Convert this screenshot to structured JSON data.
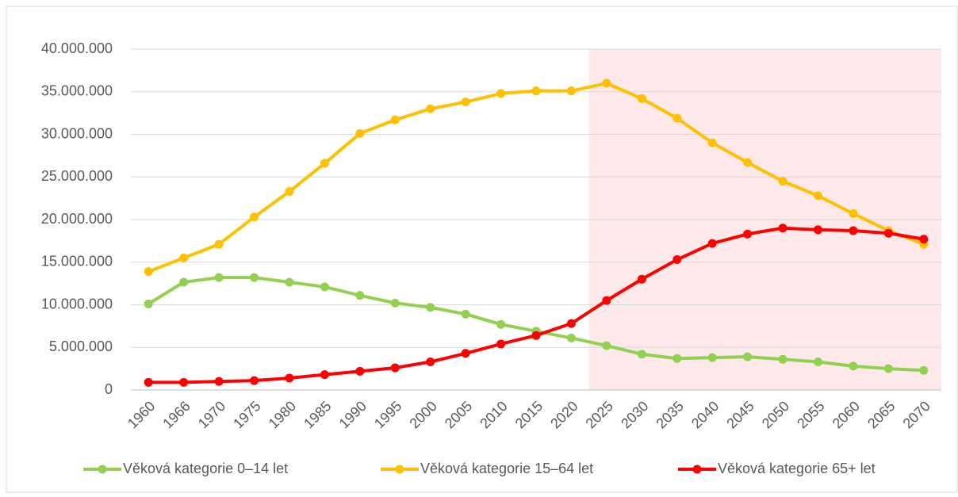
{
  "chart_data": {
    "type": "line",
    "categories": [
      "1960",
      "1966",
      "1970",
      "1975",
      "1980",
      "1985",
      "1990",
      "1995",
      "2000",
      "2005",
      "2010",
      "2015",
      "2020",
      "2025",
      "2030",
      "2035",
      "2040",
      "2045",
      "2050",
      "2055",
      "2060",
      "2065",
      "2070"
    ],
    "series": [
      {
        "name": "Věková kategorie 0–14 let",
        "color": "#92d050",
        "values": [
          10100000,
          12650000,
          13200000,
          13200000,
          12650000,
          12100000,
          11100000,
          10200000,
          9700000,
          8900000,
          7700000,
          6900000,
          6100000,
          5200000,
          4200000,
          3700000,
          3800000,
          3900000,
          3600000,
          3300000,
          2800000,
          2500000,
          2300000
        ]
      },
      {
        "name": "Věková kategorie 15–64 let",
        "color": "#ffc000",
        "values": [
          13900000,
          15500000,
          17100000,
          20300000,
          23300000,
          26600000,
          30100000,
          31700000,
          33000000,
          33800000,
          34800000,
          35100000,
          35100000,
          36000000,
          34200000,
          31900000,
          29000000,
          26700000,
          24500000,
          22800000,
          20700000,
          18700000,
          17100000
        ]
      },
      {
        "name": "Věková kategorie 65+ let",
        "color": "#ff0000",
        "values": [
          900000,
          900000,
          1000000,
          1100000,
          1400000,
          1800000,
          2200000,
          2600000,
          3300000,
          4300000,
          5400000,
          6400000,
          7800000,
          10500000,
          13000000,
          15300000,
          17200000,
          18300000,
          19000000,
          18800000,
          18700000,
          18400000,
          17700000
        ]
      }
    ],
    "ylim": [
      0,
      40000000
    ],
    "yticks": [
      0,
      {
        "value": 5000000,
        "label": "5.000.000"
      },
      {
        "value": 10000000,
        "label": "10.000.000"
      },
      {
        "value": 15000000,
        "label": "15.000.000"
      },
      {
        "value": 20000000,
        "label": "20.000.000"
      },
      {
        "value": 25000000,
        "label": "25.000.000"
      },
      {
        "value": 30000000,
        "label": "30.000.000"
      },
      {
        "value": 35000000,
        "label": "35.000.000"
      },
      {
        "value": 40000000,
        "label": "40.000.000"
      }
    ],
    "grid": true,
    "legend": "bottom",
    "highlight": {
      "from": "2025",
      "to": "2070",
      "color": "#fde9e9"
    }
  }
}
